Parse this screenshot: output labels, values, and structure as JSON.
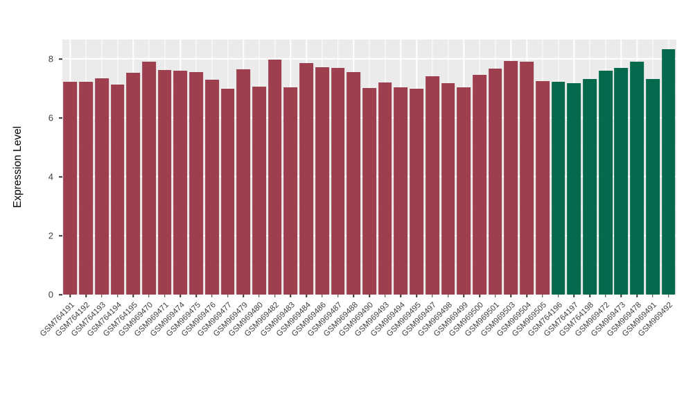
{
  "chart_data": {
    "type": "bar",
    "title": "",
    "xlabel": "",
    "ylabel": "Expression Level",
    "ylim": [
      0,
      8.66
    ],
    "yticks": [
      0,
      2,
      4,
      6,
      8
    ],
    "minor_yticks": [
      1,
      3,
      5,
      7
    ],
    "grid": "on",
    "legend": "none",
    "panel_bg": "#ebebeb",
    "grid_color": "#ffffff",
    "axis_text_color": "#3f3f3f",
    "categories": [
      "GSM764191",
      "GSM764192",
      "GSM764193",
      "GSM764194",
      "GSM764195",
      "GSM969470",
      "GSM969471",
      "GSM969474",
      "GSM969475",
      "GSM969476",
      "GSM969477",
      "GSM969479",
      "GSM969480",
      "GSM969482",
      "GSM969483",
      "GSM969484",
      "GSM969486",
      "GSM969487",
      "GSM969488",
      "GSM969490",
      "GSM969493",
      "GSM969494",
      "GSM969495",
      "GSM969497",
      "GSM969498",
      "GSM969499",
      "GSM969500",
      "GSM969501",
      "GSM969503",
      "GSM969504",
      "GSM969505",
      "GSM764196",
      "GSM764197",
      "GSM764198",
      "GSM969472",
      "GSM969473",
      "GSM969478",
      "GSM969491",
      "GSM969492"
    ],
    "values": [
      7.22,
      7.22,
      7.34,
      7.13,
      7.53,
      7.91,
      7.62,
      7.6,
      7.55,
      7.29,
      6.99,
      7.65,
      7.06,
      7.98,
      7.04,
      7.86,
      7.72,
      7.69,
      7.55,
      7.01,
      7.2,
      7.04,
      6.99,
      7.41,
      7.18,
      7.04,
      7.46,
      7.67,
      7.93,
      7.91,
      7.25,
      7.22,
      7.18,
      7.32,
      7.6,
      7.69,
      7.91,
      7.33,
      8.33
    ],
    "groups": [
      "group1",
      "group1",
      "group1",
      "group1",
      "group1",
      "group1",
      "group1",
      "group1",
      "group1",
      "group1",
      "group1",
      "group1",
      "group1",
      "group1",
      "group1",
      "group1",
      "group1",
      "group1",
      "group1",
      "group1",
      "group1",
      "group1",
      "group1",
      "group1",
      "group1",
      "group1",
      "group1",
      "group1",
      "group1",
      "group1",
      "group1",
      "group2",
      "group2",
      "group2",
      "group2",
      "group2",
      "group2",
      "group2",
      "group2"
    ],
    "group_colors": {
      "group1": "#9d3f4e",
      "group2": "#05694d"
    }
  }
}
